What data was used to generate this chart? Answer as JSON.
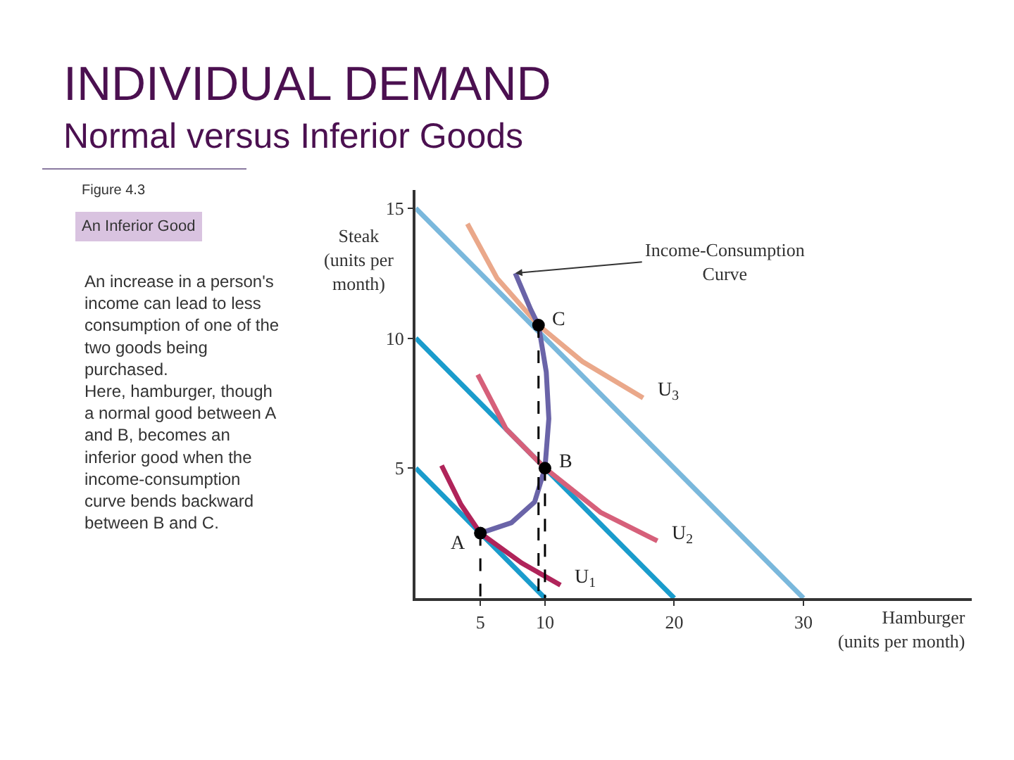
{
  "chart_data": {
    "type": "line",
    "title": "INDIVIDUAL DEMAND",
    "subtitle": "Normal versus Inferior Goods",
    "xlabel": "Hamburger\n(units per month)",
    "ylabel": "Steak\n(units per\nmonth)",
    "xlim": [
      0,
      43
    ],
    "ylim": [
      0,
      15.7
    ],
    "xticks": [
      5,
      10,
      20,
      30
    ],
    "yticks": [
      5,
      10,
      15
    ],
    "marker": "none",
    "line_style": "solid",
    "series": [
      {
        "color": "#1a9ccc",
        "x": [
          0,
          10
        ],
        "values": [
          5,
          0
        ]
      },
      {
        "color": "#1a9ccc",
        "x": [
          0,
          20
        ],
        "values": [
          10,
          0
        ]
      },
      {
        "color": "#7ab8dc",
        "x": [
          0,
          30
        ],
        "values": [
          15,
          0
        ]
      },
      {
        "color": "#b0245a",
        "x": [
          2.0,
          3.5,
          5,
          8.2,
          11.2
        ],
        "values": [
          5.1,
          3.6,
          2.5,
          1.35,
          0.5
        ]
      },
      {
        "color": "#d6607a",
        "x": [
          4.8,
          7,
          10,
          14.3,
          18.7
        ],
        "values": [
          8.6,
          6.5,
          5,
          3.3,
          2.2
        ]
      },
      {
        "color": "#eaa88a",
        "x": [
          4.0,
          6.3,
          9.5,
          12.9,
          17.6
        ],
        "values": [
          14.4,
          12.3,
          10.5,
          9.1,
          7.7
        ]
      },
      {
        "color": "#6a64a8",
        "x": [
          7.7,
          8.9,
          9.5,
          10.1,
          10.3,
          10,
          9.2,
          7.4,
          5
        ],
        "values": [
          12.5,
          11.1,
          10.5,
          8.7,
          6.9,
          5,
          3.7,
          2.9,
          2.5
        ]
      },
      {
        "color": "#000000",
        "line_style": "dashed",
        "x": [
          5,
          5
        ],
        "values": [
          2.5,
          0
        ]
      },
      {
        "color": "#000000",
        "line_style": "dashed",
        "x": [
          10,
          10
        ],
        "values": [
          5,
          0
        ]
      },
      {
        "color": "#000000",
        "line_style": "dashed",
        "x": [
          9.5,
          9.5
        ],
        "values": [
          10.5,
          0
        ]
      },
      {
        "type": "scatter",
        "marker": "circle",
        "color": "#000000",
        "x": [
          5,
          10,
          9.5
        ],
        "values": [
          2.5,
          5,
          10.5
        ]
      }
    ],
    "annotations": [
      "Figure 4.3",
      "An Inferior Good",
      "An increase in a person's\nincome can lead to less\nconsumption of one of the\ntwo goods being\npurchased.\nHere, hamburger, though\na normal good between A\nand B, becomes an\ninferior good when the\nincome-consumption\ncurve bends backward\nbetween B and C.",
      {
        "text": "A",
        "x": 5,
        "y": 2.5
      },
      {
        "text": "B",
        "x": 10,
        "y": 5
      },
      {
        "text": "C",
        "x": 9.5,
        "y": 10.5
      },
      {
        "text": "U$_{1}$",
        "x": 11.2,
        "y": 0.5
      },
      {
        "text": "U$_{2}$",
        "x": 18.7,
        "y": 2.2
      },
      {
        "text": "U$_{3}$",
        "x": 17.6,
        "y": 7.7
      },
      {
        "text": "Income-Consumption\nCurve",
        "x": 7.7,
        "y": 12.5
      }
    ]
  }
}
